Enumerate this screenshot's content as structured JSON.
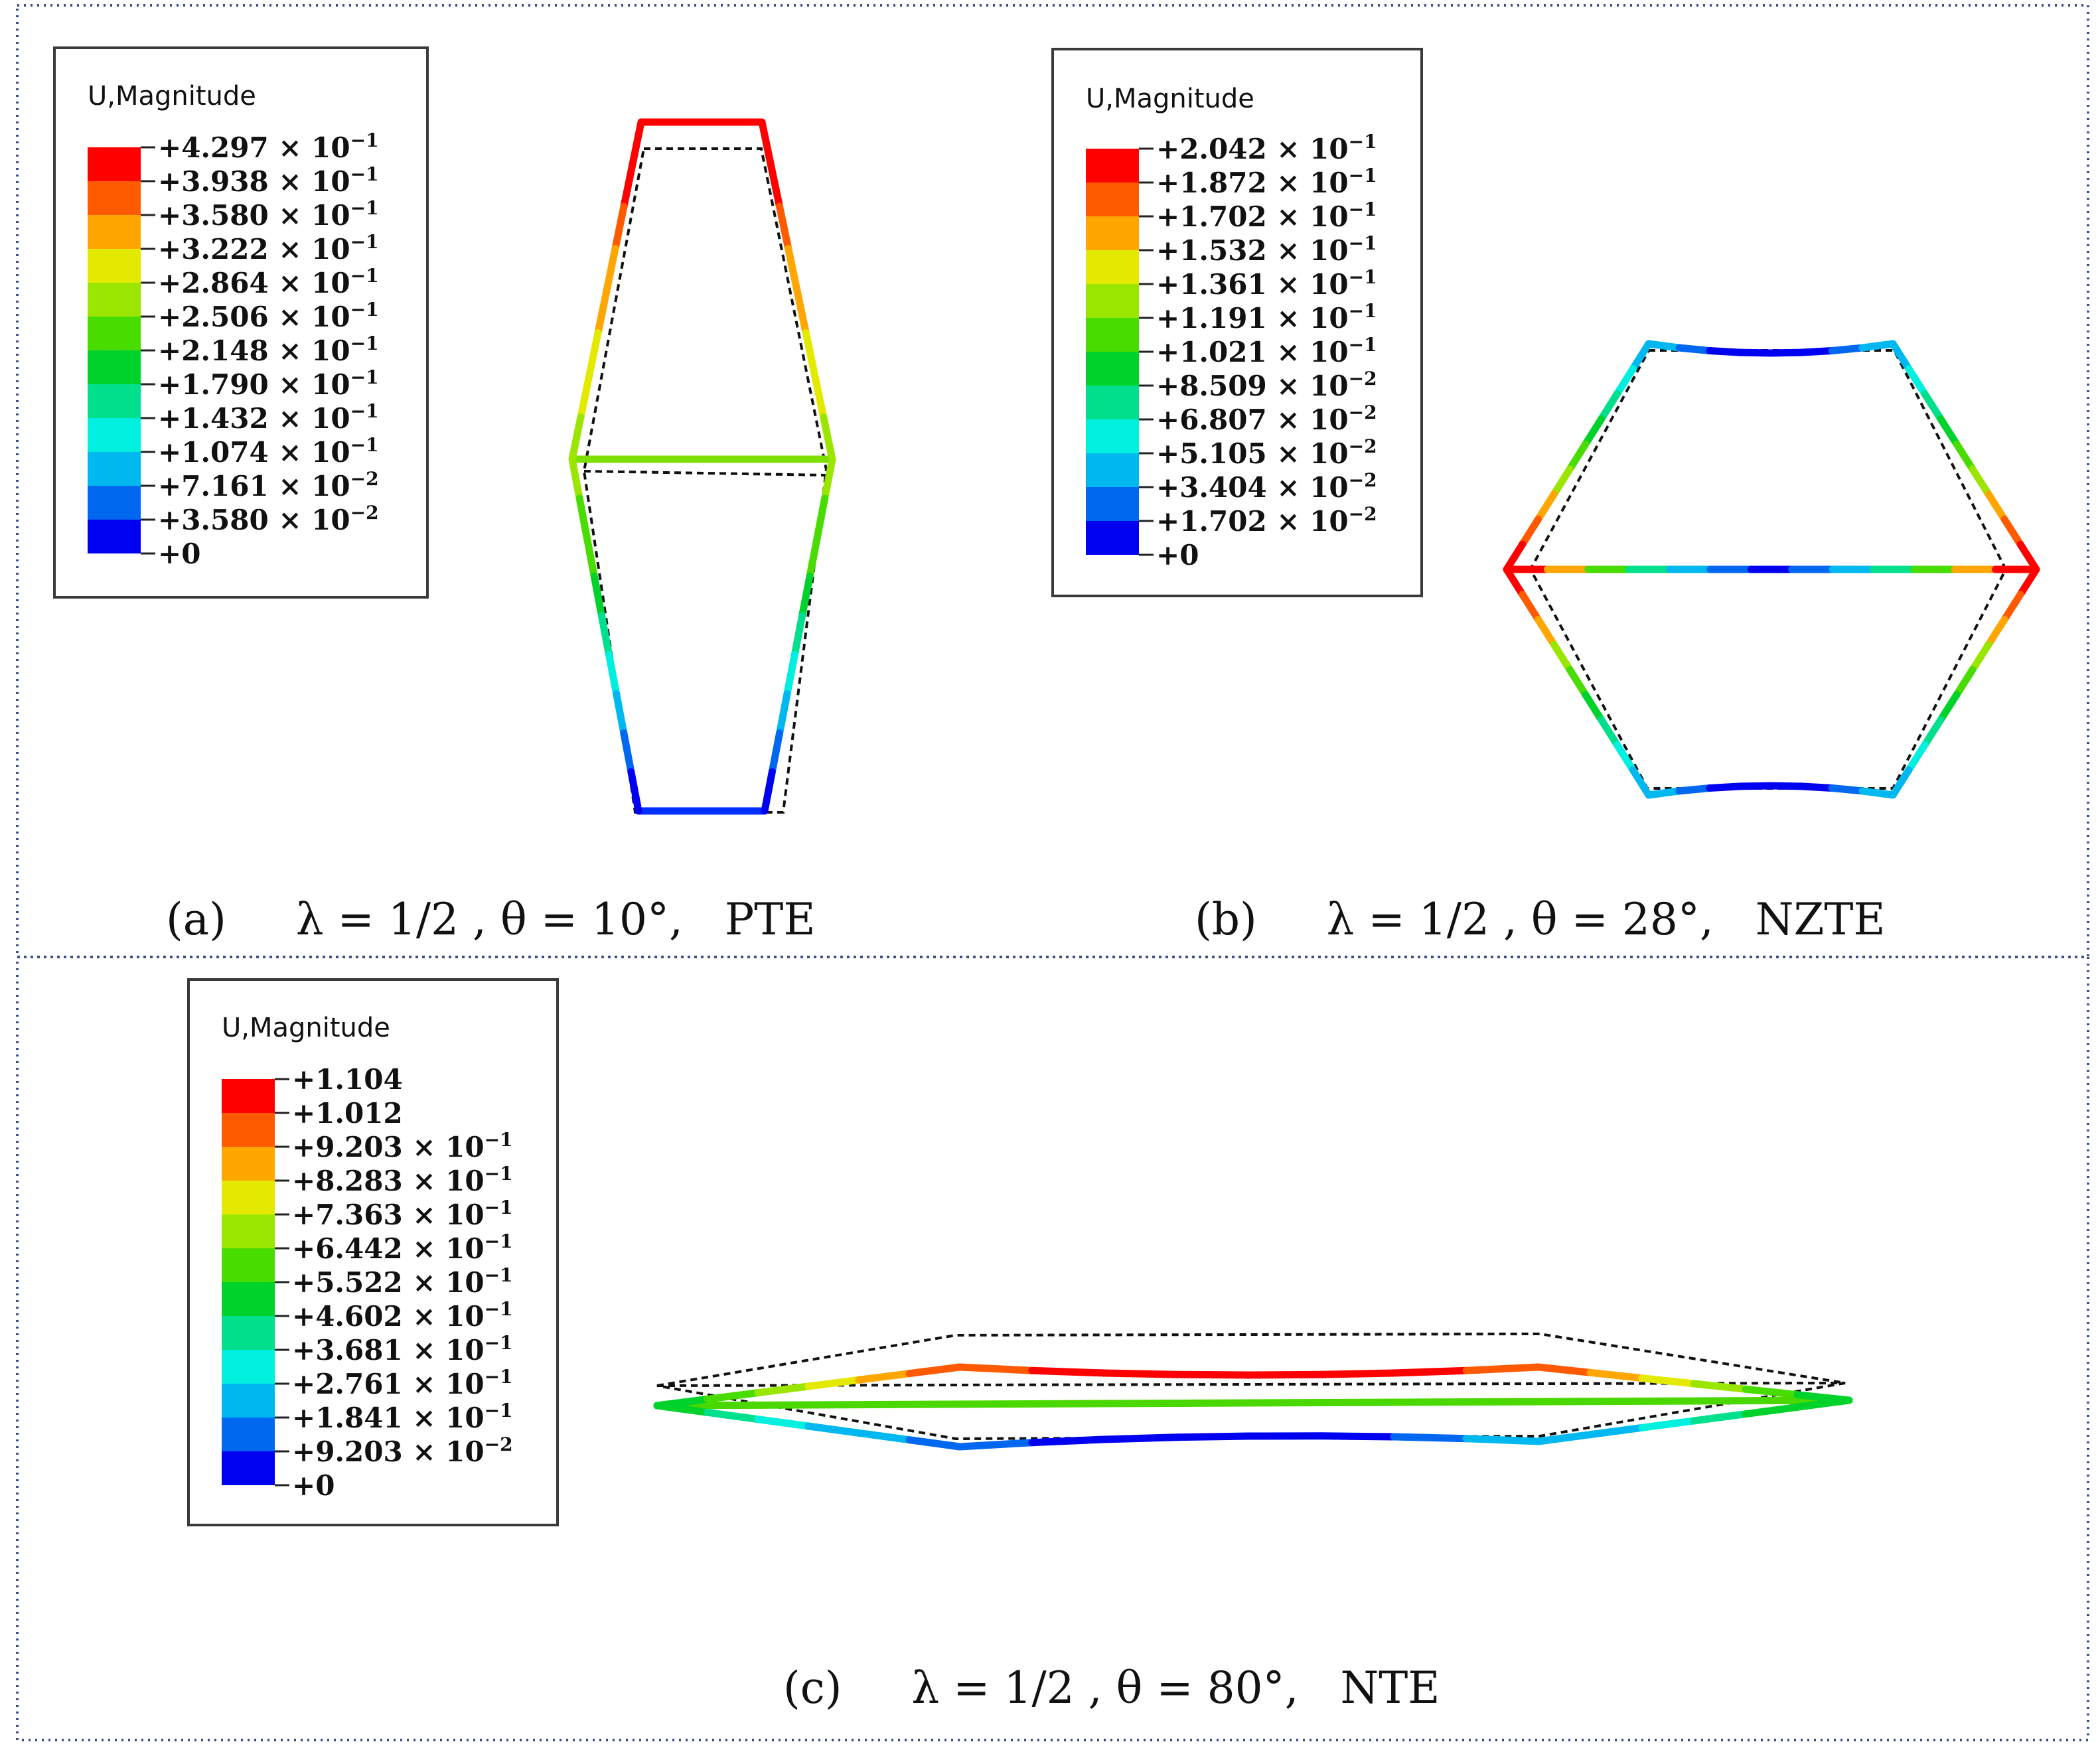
{
  "legend_title": "U,Magnitude",
  "colorscale": [
    "#ff0000",
    "#ff5a00",
    "#ffa600",
    "#e3ea00",
    "#9be600",
    "#48dc00",
    "#00d22c",
    "#00e08c",
    "#00f0e0",
    "#00b8f0",
    "#0068f0",
    "#0000f0"
  ],
  "panels": [
    {
      "id": "a",
      "caption": "(a)     λ = 1/2 , θ = 10°,   PTE",
      "legend": [
        {
          "m": "+4.297",
          "e": "−1"
        },
        {
          "m": "+3.938",
          "e": "−1"
        },
        {
          "m": "+3.580",
          "e": "−1"
        },
        {
          "m": "+3.222",
          "e": "−1"
        },
        {
          "m": "+2.864",
          "e": "−1"
        },
        {
          "m": "+2.506",
          "e": "−1"
        },
        {
          "m": "+2.148",
          "e": "−1"
        },
        {
          "m": "+1.790",
          "e": "−1"
        },
        {
          "m": "+1.432",
          "e": "−1"
        },
        {
          "m": "+1.074",
          "e": "−1"
        },
        {
          "m": "+7.161",
          "e": "−2"
        },
        {
          "m": "+3.580",
          "e": "−2"
        },
        {
          "m": "+0",
          "e": ""
        }
      ]
    },
    {
      "id": "b",
      "caption": "(b)     λ = 1/2 , θ = 28°,   NZTE",
      "legend": [
        {
          "m": "+2.042",
          "e": "−1"
        },
        {
          "m": "+1.872",
          "e": "−1"
        },
        {
          "m": "+1.702",
          "e": "−1"
        },
        {
          "m": "+1.532",
          "e": "−1"
        },
        {
          "m": "+1.361",
          "e": "−1"
        },
        {
          "m": "+1.191",
          "e": "−1"
        },
        {
          "m": "+1.021",
          "e": "−1"
        },
        {
          "m": "+8.509",
          "e": "−2"
        },
        {
          "m": "+6.807",
          "e": "−2"
        },
        {
          "m": "+5.105",
          "e": "−2"
        },
        {
          "m": "+3.404",
          "e": "−2"
        },
        {
          "m": "+1.702",
          "e": "−2"
        },
        {
          "m": "+0",
          "e": ""
        }
      ]
    },
    {
      "id": "c",
      "caption": "(c)     λ = 1/2 , θ = 80°,   NTE",
      "legend": [
        {
          "m": "+1.104",
          "e": ""
        },
        {
          "m": "+1.012",
          "e": ""
        },
        {
          "m": "+9.203",
          "e": "−1"
        },
        {
          "m": "+8.283",
          "e": "−1"
        },
        {
          "m": "+7.363",
          "e": "−1"
        },
        {
          "m": "+6.442",
          "e": "−1"
        },
        {
          "m": "+5.522",
          "e": "−1"
        },
        {
          "m": "+4.602",
          "e": "−1"
        },
        {
          "m": "+3.681",
          "e": "−1"
        },
        {
          "m": "+2.761",
          "e": "−1"
        },
        {
          "m": "+1.841",
          "e": "−1"
        },
        {
          "m": "+9.203",
          "e": "−2"
        },
        {
          "m": "+0",
          "e": ""
        }
      ]
    }
  ]
}
